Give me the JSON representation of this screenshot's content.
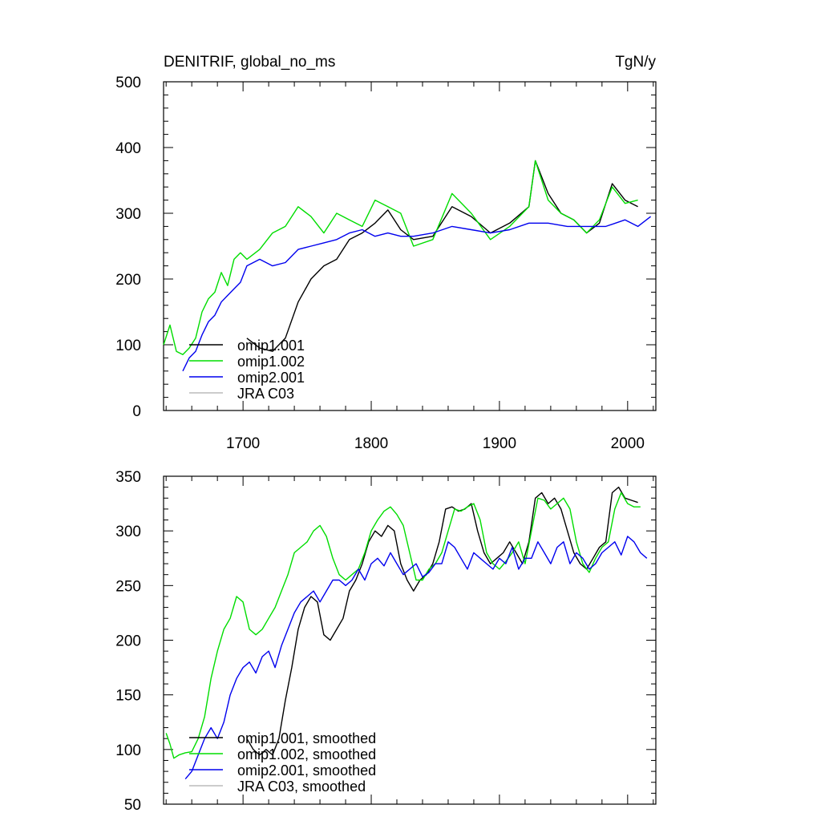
{
  "header": {
    "title": "DENITRIF, global_no_ms",
    "units": "TgN/y"
  },
  "chart_data": [
    {
      "type": "line",
      "title": "DENITRIF, global_no_ms",
      "ylabel_right": "TgN/y",
      "xlim": [
        1638,
        2022
      ],
      "ylim": [
        0,
        500
      ],
      "xticks": [
        1700,
        1800,
        1900,
        2000
      ],
      "xtick_labels": [
        "1700",
        "1800",
        "1900",
        "2000"
      ],
      "yticks": [
        0,
        100,
        200,
        300,
        400,
        500
      ],
      "ytick_labels": [
        "0",
        "100",
        "200",
        "300",
        "400",
        "500"
      ],
      "legend_position": "lower-left",
      "legend": [
        "omip1.001",
        "omip1.002",
        "omip2.001",
        "JRA C03"
      ],
      "series": [
        {
          "name": "omip1.001",
          "color": "#000000",
          "x": [
            1638,
            1653,
            1668,
            1683,
            1698,
            1703,
            1713,
            1723,
            1733,
            1743,
            1753,
            1763,
            1773,
            1783,
            1793,
            1803,
            1813,
            1823,
            1833,
            1848,
            1863,
            1878,
            1893,
            1908,
            1923,
            1928,
            1938,
            1948,
            1958,
            1968,
            1978,
            1988,
            1998,
            2008
          ],
          "y": [
            null,
            null,
            null,
            null,
            null,
            110,
            95,
            90,
            110,
            165,
            200,
            220,
            230,
            260,
            270,
            285,
            305,
            275,
            260,
            265,
            310,
            295,
            270,
            285,
            310,
            380,
            330,
            300,
            290,
            270,
            285,
            345,
            320,
            310
          ]
        },
        {
          "name": "omip1.002",
          "color": "#00dd00",
          "x": [
            1638,
            1643,
            1648,
            1653,
            1658,
            1663,
            1668,
            1673,
            1678,
            1683,
            1688,
            1693,
            1698,
            1703,
            1713,
            1723,
            1733,
            1743,
            1753,
            1763,
            1773,
            1783,
            1793,
            1803,
            1813,
            1823,
            1833,
            1848,
            1863,
            1878,
            1893,
            1908,
            1923,
            1928,
            1938,
            1948,
            1958,
            1968,
            1978,
            1988,
            1998,
            2008
          ],
          "y": [
            100,
            130,
            90,
            85,
            95,
            110,
            150,
            170,
            180,
            210,
            190,
            230,
            240,
            230,
            245,
            270,
            280,
            310,
            295,
            270,
            300,
            290,
            280,
            320,
            310,
            300,
            250,
            260,
            330,
            300,
            260,
            280,
            310,
            380,
            320,
            300,
            290,
            270,
            290,
            340,
            315,
            320
          ]
        },
        {
          "name": "omip2.001",
          "color": "#0000ee",
          "x": [
            1653,
            1658,
            1663,
            1668,
            1673,
            1678,
            1683,
            1688,
            1693,
            1698,
            1703,
            1713,
            1723,
            1733,
            1743,
            1753,
            1763,
            1773,
            1783,
            1793,
            1803,
            1813,
            1823,
            1833,
            1848,
            1863,
            1878,
            1893,
            1908,
            1923,
            1938,
            1953,
            1968,
            1983,
            1998,
            2008,
            2018
          ],
          "y": [
            60,
            80,
            90,
            115,
            135,
            145,
            165,
            175,
            185,
            195,
            220,
            230,
            220,
            225,
            245,
            250,
            255,
            260,
            270,
            275,
            265,
            270,
            265,
            265,
            270,
            280,
            275,
            270,
            275,
            285,
            285,
            280,
            280,
            280,
            290,
            280,
            295
          ]
        },
        {
          "name": "JRA C03",
          "color": "#bbbbbb",
          "x": [],
          "y": []
        }
      ]
    },
    {
      "type": "line",
      "xlim": [
        1638,
        2022
      ],
      "ylim": [
        50,
        350
      ],
      "xticks": [
        1700,
        1800,
        1900,
        2000
      ],
      "yticks": [
        50,
        100,
        150,
        200,
        250,
        300,
        350
      ],
      "ytick_labels": [
        "50",
        "100",
        "150",
        "200",
        "250",
        "300",
        "350"
      ],
      "legend_position": "lower-left",
      "legend": [
        "omip1.001, smoothed",
        "omip1.002, smoothed",
        "omip2.001, smoothed",
        "JRA C03, smoothed"
      ],
      "series": [
        {
          "name": "omip1.001, smoothed",
          "color": "#000000",
          "x": [
            1703,
            1708,
            1713,
            1718,
            1723,
            1728,
            1733,
            1738,
            1743,
            1748,
            1753,
            1758,
            1763,
            1768,
            1773,
            1778,
            1783,
            1788,
            1793,
            1798,
            1803,
            1808,
            1813,
            1818,
            1823,
            1828,
            1833,
            1838,
            1843,
            1848,
            1853,
            1858,
            1863,
            1868,
            1873,
            1878,
            1883,
            1888,
            1893,
            1898,
            1903,
            1908,
            1913,
            1918,
            1923,
            1928,
            1933,
            1938,
            1943,
            1948,
            1953,
            1958,
            1963,
            1968,
            1973,
            1978,
            1983,
            1988,
            1993,
            1998,
            2003,
            2008
          ],
          "y": [
            110,
            100,
            95,
            100,
            95,
            110,
            145,
            175,
            210,
            230,
            240,
            235,
            205,
            200,
            210,
            220,
            245,
            255,
            270,
            290,
            300,
            295,
            305,
            300,
            270,
            255,
            245,
            255,
            260,
            270,
            290,
            320,
            322,
            318,
            320,
            325,
            300,
            280,
            270,
            275,
            280,
            290,
            280,
            270,
            290,
            330,
            335,
            325,
            330,
            320,
            300,
            280,
            270,
            265,
            275,
            285,
            290,
            335,
            340,
            330,
            328,
            326
          ]
        },
        {
          "name": "omip1.002, smoothed",
          "color": "#00dd00",
          "x": [
            1640,
            1643,
            1646,
            1650,
            1655,
            1660,
            1665,
            1670,
            1675,
            1680,
            1685,
            1690,
            1695,
            1700,
            1705,
            1710,
            1715,
            1720,
            1725,
            1730,
            1735,
            1740,
            1745,
            1750,
            1755,
            1760,
            1765,
            1770,
            1775,
            1780,
            1785,
            1790,
            1795,
            1800,
            1805,
            1810,
            1815,
            1820,
            1825,
            1830,
            1835,
            1840,
            1845,
            1850,
            1855,
            1860,
            1865,
            1870,
            1875,
            1880,
            1885,
            1890,
            1895,
            1900,
            1905,
            1910,
            1915,
            1920,
            1925,
            1930,
            1935,
            1940,
            1945,
            1950,
            1955,
            1960,
            1965,
            1970,
            1975,
            1980,
            1985,
            1990,
            1995,
            2000,
            2005,
            2010
          ],
          "y": [
            115,
            105,
            92,
            95,
            97,
            98,
            110,
            130,
            165,
            190,
            210,
            220,
            240,
            235,
            210,
            205,
            210,
            220,
            230,
            245,
            260,
            280,
            285,
            290,
            300,
            305,
            295,
            275,
            260,
            255,
            260,
            265,
            280,
            300,
            310,
            318,
            322,
            315,
            305,
            280,
            255,
            255,
            265,
            270,
            280,
            300,
            320,
            318,
            322,
            325,
            310,
            280,
            270,
            265,
            272,
            280,
            290,
            270,
            300,
            330,
            328,
            320,
            325,
            330,
            320,
            290,
            270,
            262,
            275,
            285,
            290,
            320,
            335,
            325,
            322,
            322
          ]
        },
        {
          "name": "omip2.001, smoothed",
          "color": "#0000ee",
          "x": [
            1655,
            1660,
            1665,
            1670,
            1675,
            1680,
            1685,
            1690,
            1695,
            1700,
            1705,
            1710,
            1715,
            1720,
            1725,
            1730,
            1735,
            1740,
            1745,
            1750,
            1755,
            1760,
            1765,
            1770,
            1775,
            1780,
            1785,
            1790,
            1795,
            1800,
            1805,
            1810,
            1815,
            1820,
            1825,
            1830,
            1835,
            1840,
            1845,
            1850,
            1855,
            1860,
            1865,
            1870,
            1875,
            1880,
            1885,
            1890,
            1895,
            1900,
            1905,
            1910,
            1915,
            1920,
            1925,
            1930,
            1935,
            1940,
            1945,
            1950,
            1955,
            1960,
            1965,
            1970,
            1975,
            1980,
            1985,
            1990,
            1995,
            2000,
            2005,
            2010,
            2015
          ],
          "y": [
            73,
            80,
            95,
            110,
            120,
            110,
            125,
            150,
            165,
            175,
            180,
            170,
            185,
            190,
            175,
            195,
            210,
            225,
            235,
            240,
            245,
            235,
            245,
            255,
            255,
            250,
            255,
            265,
            255,
            270,
            275,
            268,
            280,
            270,
            260,
            265,
            270,
            258,
            262,
            270,
            270,
            290,
            285,
            275,
            265,
            280,
            275,
            270,
            265,
            275,
            270,
            285,
            265,
            275,
            275,
            290,
            280,
            270,
            285,
            290,
            270,
            280,
            275,
            265,
            270,
            280,
            285,
            290,
            278,
            295,
            290,
            280,
            275
          ]
        },
        {
          "name": "JRA C03, smoothed",
          "color": "#bbbbbb",
          "x": [],
          "y": []
        }
      ]
    }
  ]
}
